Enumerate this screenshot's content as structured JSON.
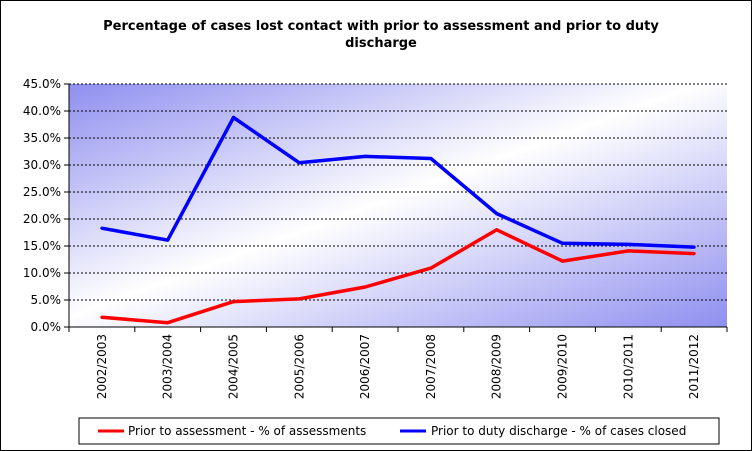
{
  "chart_data": {
    "type": "line",
    "title_lines": [
      "Percentage of cases lost contact with prior to assessment and prior to duty",
      "discharge"
    ],
    "categories": [
      "2002/2003",
      "2003/2004",
      "2004/2005",
      "2005/2006",
      "2006/2007",
      "2007/2008",
      "2008/2009",
      "2009/2010",
      "2010/2011",
      "2011/2012"
    ],
    "yticks": [
      "0.0%",
      "5.0%",
      "10.0%",
      "15.0%",
      "20.0%",
      "25.0%",
      "30.0%",
      "35.0%",
      "40.0%",
      "45.0%"
    ],
    "ylim": [
      0,
      45
    ],
    "grid": true,
    "legend_position": "bottom",
    "series": [
      {
        "name": "Prior to assessment - % of assessments",
        "color": "#ff0000",
        "values": [
          1.8,
          0.8,
          4.7,
          5.2,
          7.4,
          10.9,
          18.0,
          12.2,
          14.1,
          13.6
        ]
      },
      {
        "name": "Prior to duty discharge  - % of cases closed",
        "color": "#0000ff",
        "values": [
          18.3,
          16.1,
          38.8,
          30.4,
          31.6,
          31.2,
          21.0,
          15.5,
          15.3,
          14.8
        ]
      }
    ]
  }
}
